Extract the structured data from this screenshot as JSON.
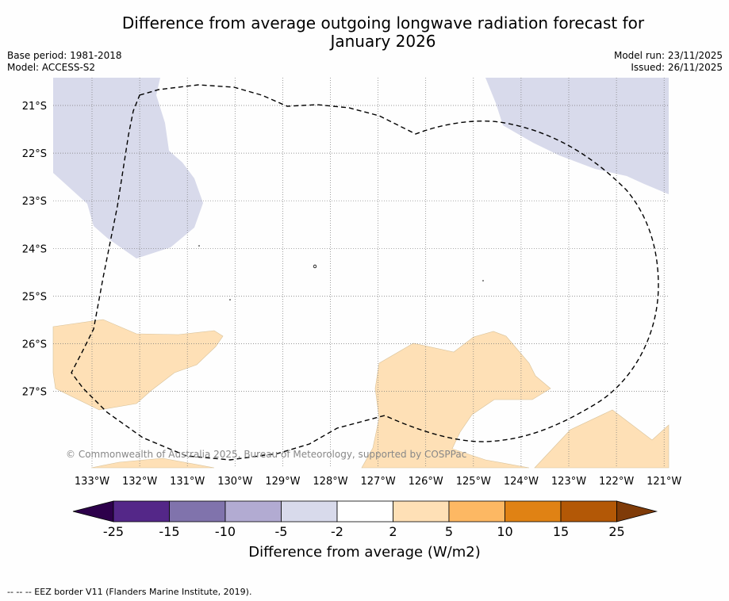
{
  "title_line1": "Difference from average outgoing longwave radiation forecast for",
  "title_line2": "January 2026",
  "base_period": "Base period: 1981-2018",
  "model": "Model: ACCESS-S2",
  "model_run": "Model run: 23/11/2025",
  "issued": "Issued: 26/11/2025",
  "copyright": "© Commonwealth of Australia 2025, Bureau of Meteorology, supported by COSPPac",
  "footer": "--  --  -- EEZ border V11 (Flanders Marine Institute, 2019).",
  "latitude_labels": [
    "21°S",
    "22°S",
    "23°S",
    "24°S",
    "25°S",
    "26°S",
    "27°S"
  ],
  "longitude_labels": [
    "133°W",
    "132°W",
    "131°W",
    "130°W",
    "129°W",
    "128°W",
    "127°W",
    "126°W",
    "125°W",
    "124°W",
    "123°W",
    "122°W",
    "121°W"
  ],
  "colorbar": {
    "label": "Difference from average (W/m2)",
    "ticks": [
      "-25",
      "-15",
      "-10",
      "-5",
      "-2",
      "2",
      "5",
      "10",
      "15",
      "25"
    ],
    "colors": [
      "#2d004b",
      "#542788",
      "#8073ac",
      "#b2abd2",
      "#d8daeb",
      "#ffffff",
      "#fee0b6",
      "#fdb863",
      "#e08214",
      "#b35806",
      "#7f3b08"
    ]
  },
  "colors": {
    "negative_light": "#d8daeb",
    "positive_light": "#fee0b6"
  }
}
